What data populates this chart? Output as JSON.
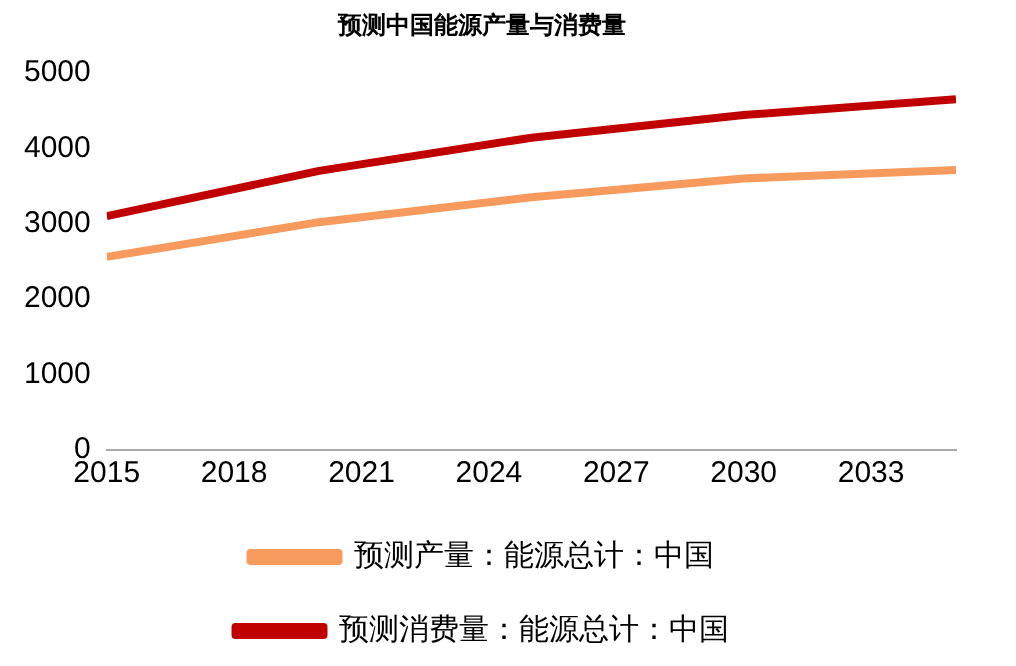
{
  "chart_data": {
    "type": "line",
    "title": "预测中国能源产量与消费量",
    "x": [
      2015,
      2020,
      2025,
      2030,
      2035
    ],
    "series": [
      {
        "name": "预测产量：能源总计：中国",
        "color": "#f79a5e",
        "values": [
          2560,
          3020,
          3350,
          3600,
          3710
        ]
      },
      {
        "name": "预测消费量：能源总计：中国",
        "color": "#c00000",
        "values": [
          3100,
          3700,
          4140,
          4440,
          4650
        ]
      }
    ],
    "xlim": [
      2015,
      2035
    ],
    "xticks": [
      2015,
      2018,
      2021,
      2024,
      2027,
      2030,
      2033
    ],
    "ylim": [
      0,
      5000
    ],
    "yticks": [
      0,
      1000,
      2000,
      3000,
      4000,
      5000
    ],
    "grid": false,
    "legend": "bottom",
    "marker": "none",
    "line_style": "solid"
  }
}
